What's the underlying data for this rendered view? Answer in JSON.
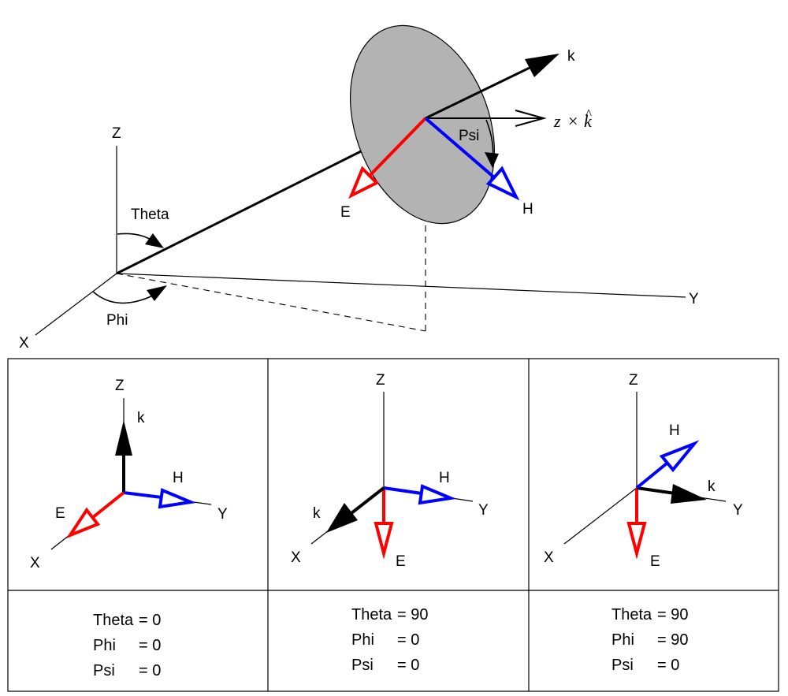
{
  "main": {
    "labels": {
      "k": "k",
      "z_cross_khat_z": "z",
      "z_cross_khat_times": "×",
      "z_cross_khat_k": "k",
      "z_cross_khat_hat": "^",
      "psi": "Psi",
      "e": "E",
      "h": "H",
      "z": "Z",
      "theta": "Theta",
      "phi": "Phi",
      "x": "X",
      "y": "Y"
    }
  },
  "panels": [
    {
      "axes": {
        "z": "Z",
        "x": "X",
        "y": "Y"
      },
      "vectors": {
        "k": "k",
        "e": "E",
        "h": "H"
      },
      "caption": [
        {
          "name": "Theta",
          "value": "0"
        },
        {
          "name": "Phi",
          "value": "0"
        },
        {
          "name": "Psi",
          "value": "0"
        }
      ]
    },
    {
      "axes": {
        "z": "Z",
        "x": "X",
        "y": "Y"
      },
      "vectors": {
        "k": "k",
        "e": "E",
        "h": "H"
      },
      "caption": [
        {
          "name": "Theta",
          "value": "90"
        },
        {
          "name": "Phi",
          "value": "0"
        },
        {
          "name": "Psi",
          "value": "0"
        }
      ]
    },
    {
      "axes": {
        "z": "Z",
        "x": "X",
        "y": "Y"
      },
      "vectors": {
        "k": "k",
        "e": "E",
        "h": "H"
      },
      "caption": [
        {
          "name": "Theta",
          "value": "90"
        },
        {
          "name": "Phi",
          "value": "90"
        },
        {
          "name": "Psi",
          "value": "0"
        }
      ]
    }
  ],
  "colors": {
    "e_field": "#ff0000",
    "h_field": "#0000ff",
    "k_vector": "#000000",
    "wavefront": "#b3b3b3"
  }
}
